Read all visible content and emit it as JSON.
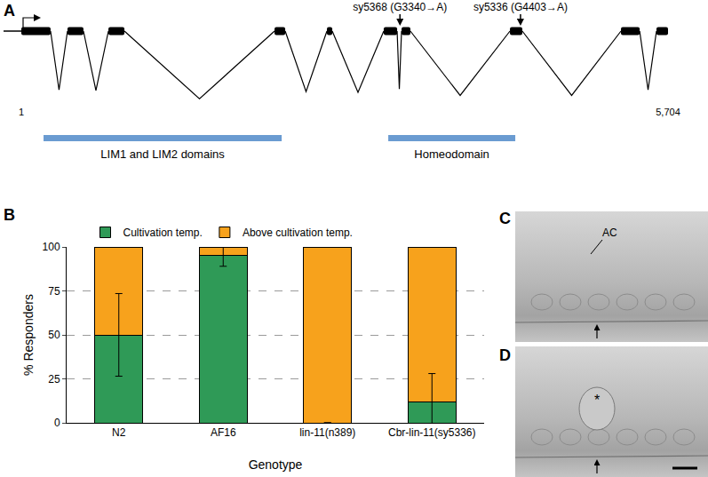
{
  "panel_labels": [
    "A",
    "B",
    "C",
    "D"
  ],
  "gene_diagram": {
    "start": 1,
    "length": {
      "value": 5704,
      "label": "5,704"
    },
    "exons": [
      [
        1,
        259
      ],
      [
        408,
        549
      ],
      [
        769,
        910
      ],
      [
        2234,
        2328
      ],
      [
        2696,
        2743
      ],
      [
        3197,
        3315
      ],
      [
        3354,
        3432
      ],
      [
        4310,
        4419
      ],
      [
        5289,
        5454
      ],
      [
        5602,
        5704
      ]
    ],
    "mutations": [
      {
        "label": "sy5368 (G3340→A)",
        "position": 3340
      },
      {
        "label": "sy5336 (G4403→A)",
        "position": 4403
      }
    ],
    "domains": [
      {
        "name": "LIM1 and LIM2 domains",
        "start": 197,
        "end": 2297
      },
      {
        "name": "Homeodomain",
        "start": 3237,
        "end": 4357
      }
    ]
  },
  "chart_data": {
    "type": "bar",
    "stacked": true,
    "categories": [
      "N2",
      "AF16",
      "lin-11(n389)",
      "Cbr-lin-11(sy5336)"
    ],
    "series": [
      {
        "name": "Cultivation temp.",
        "color": "#2f9a57",
        "values": [
          50,
          95,
          0,
          12
        ],
        "error": [
          23.5,
          6,
          null,
          16
        ]
      },
      {
        "name": "Above cultivation temp.",
        "color": "#f7a21c",
        "values": [
          50,
          5,
          100,
          88
        ]
      }
    ],
    "xlabel": "Genotype",
    "ylabel": "% Responders",
    "ylim": [
      0,
      100
    ],
    "yticks": [
      0,
      25,
      50,
      75,
      100
    ],
    "grid": true,
    "legend": "top"
  },
  "micrographs": [
    {
      "panel": "C",
      "label": "AC"
    },
    {
      "panel": "D",
      "label": "*"
    }
  ]
}
